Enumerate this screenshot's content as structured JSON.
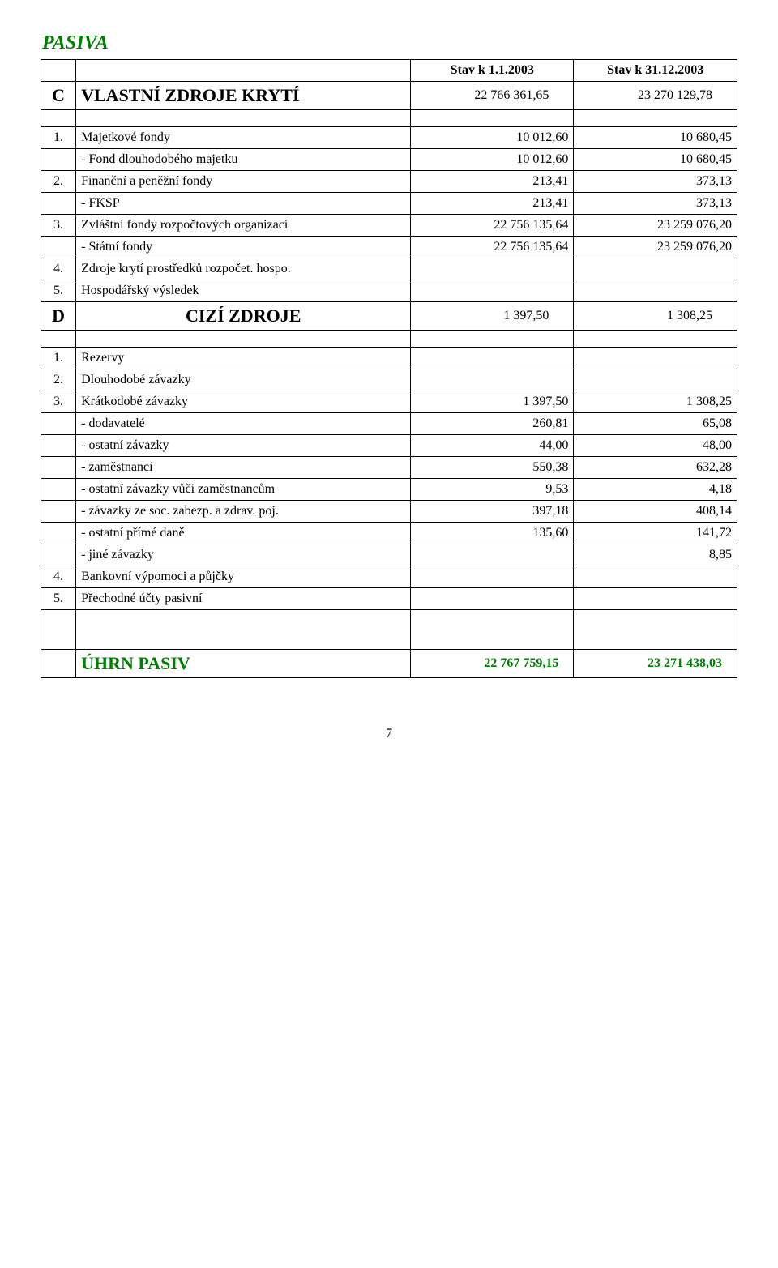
{
  "title": "PASIVA",
  "header": {
    "col1": "Stav k 1.1.2003",
    "col2": "Stav k 31.12.2003"
  },
  "sectionC": {
    "letter": "C",
    "label": "VLASTNÍ ZDROJE KRYTÍ",
    "v1": "22 766 361,65",
    "v2": "23 270 129,78"
  },
  "rowsC": [
    {
      "n": "1.",
      "label": "Majetkové fondy",
      "v1": "10 012,60",
      "v2": "10 680,45"
    },
    {
      "n": "",
      "label": "- Fond dlouhodobého majetku",
      "v1": "10 012,60",
      "v2": "10 680,45",
      "sub": true
    },
    {
      "n": "2.",
      "label": "Finanční a peněžní fondy",
      "v1": "213,41",
      "v2": "373,13"
    },
    {
      "n": "",
      "label": "- FKSP",
      "v1": "213,41",
      "v2": "373,13",
      "sub": true
    },
    {
      "n": "3.",
      "label": "Zvláštní fondy rozpočtových organizací",
      "v1": "22 756 135,64",
      "v2": "23 259 076,20"
    },
    {
      "n": "",
      "label": "- Státní fondy",
      "v1": "22 756 135,64",
      "v2": "23 259 076,20",
      "sub": true
    },
    {
      "n": "4.",
      "label": "Zdroje krytí prostředků rozpočet. hospo.",
      "v1": "",
      "v2": ""
    },
    {
      "n": "5.",
      "label": "Hospodářský výsledek",
      "v1": "",
      "v2": ""
    }
  ],
  "sectionD": {
    "letter": "D",
    "label": "CIZÍ ZDROJE",
    "v1": "1 397,50",
    "v2": "1 308,25"
  },
  "rowsD": [
    {
      "n": "1.",
      "label": "Rezervy",
      "v1": "",
      "v2": ""
    },
    {
      "n": "2.",
      "label": "Dlouhodobé závazky",
      "v1": "",
      "v2": ""
    },
    {
      "n": "3.",
      "label": "Krátkodobé závazky",
      "v1": "1 397,50",
      "v2": "1 308,25"
    },
    {
      "n": "",
      "label": "- dodavatelé",
      "v1": "260,81",
      "v2": "65,08",
      "sub": true
    },
    {
      "n": "",
      "label": "- ostatní závazky",
      "v1": "44,00",
      "v2": "48,00",
      "sub": true
    },
    {
      "n": "",
      "label": "- zaměstnanci",
      "v1": "550,38",
      "v2": "632,28",
      "sub": true
    },
    {
      "n": "",
      "label": "- ostatní závazky vůči zaměstnancům",
      "v1": "9,53",
      "v2": "4,18",
      "sub": true
    },
    {
      "n": "",
      "label": "- závazky ze soc. zabezp. a zdrav. poj.",
      "v1": "397,18",
      "v2": "408,14",
      "sub": true
    },
    {
      "n": "",
      "label": "- ostatní přímé daně",
      "v1": "135,60",
      "v2": "141,72",
      "sub": true
    },
    {
      "n": "",
      "label": "- jiné závazky",
      "v1": "",
      "v2": "8,85",
      "sub": true
    },
    {
      "n": "4.",
      "label": "Bankovní výpomoci a půjčky",
      "v1": "",
      "v2": ""
    },
    {
      "n": "5.",
      "label": "Přechodné účty pasivní",
      "v1": "",
      "v2": ""
    }
  ],
  "total": {
    "label": "ÚHRN PASIV",
    "v1": "22 767 759,15",
    "v2": "23 271 438,03"
  },
  "pageno": "7",
  "colors": {
    "green": "#008000",
    "border": "#000000",
    "bg": "#ffffff"
  }
}
